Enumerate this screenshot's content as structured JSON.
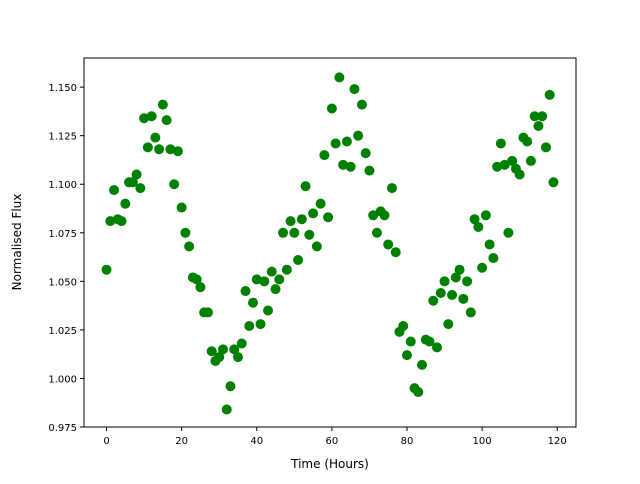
{
  "chart_data": {
    "type": "scatter",
    "title": "",
    "xlabel": "Time (Hours)",
    "ylabel": "Normalised Flux",
    "xlim": [
      -6,
      125
    ],
    "ylim": [
      0.975,
      1.165
    ],
    "xticks": [
      0,
      20,
      40,
      60,
      80,
      100,
      120
    ],
    "xtick_labels": [
      "0",
      "20",
      "40",
      "60",
      "80",
      "100",
      "120"
    ],
    "yticks": [
      0.975,
      1.0,
      1.025,
      1.05,
      1.075,
      1.1,
      1.125,
      1.15
    ],
    "ytick_labels": [
      "0.975",
      "1.000",
      "1.025",
      "1.050",
      "1.075",
      "1.100",
      "1.125",
      "1.150"
    ],
    "grid": false,
    "legend": "none",
    "marker_color": "#008000",
    "series": [
      {
        "x": [
          0,
          1,
          2,
          3,
          4,
          5,
          6,
          7,
          8,
          9,
          10,
          11,
          12,
          13,
          14,
          15,
          16,
          17,
          18,
          19,
          20,
          21,
          22,
          23,
          24,
          25,
          26,
          27,
          28,
          29,
          30,
          31,
          32,
          33,
          34,
          35,
          36,
          37,
          38,
          39,
          40,
          41,
          42,
          43,
          44,
          45,
          46,
          47,
          48,
          49,
          50,
          51,
          52,
          53,
          54,
          55,
          56,
          57,
          58,
          59,
          60,
          61,
          62,
          63,
          64,
          65,
          66,
          67,
          68,
          69,
          70,
          71,
          72,
          73,
          74,
          75,
          76,
          77,
          78,
          79,
          80,
          81,
          82,
          83,
          84,
          85,
          86,
          87,
          88,
          89,
          90,
          91,
          92,
          93,
          94,
          95,
          96,
          97,
          98,
          99,
          100,
          101,
          102,
          103,
          104,
          105,
          106,
          107,
          108,
          109,
          110,
          111,
          112,
          113,
          114,
          115,
          116,
          117,
          118,
          119
        ],
        "y": [
          1.056,
          1.081,
          1.097,
          1.082,
          1.081,
          1.09,
          1.101,
          1.101,
          1.105,
          1.098,
          1.134,
          1.119,
          1.135,
          1.124,
          1.118,
          1.141,
          1.133,
          1.118,
          1.1,
          1.117,
          1.088,
          1.075,
          1.068,
          1.052,
          1.051,
          1.047,
          1.034,
          1.034,
          1.014,
          1.009,
          1.011,
          1.015,
          0.984,
          0.996,
          1.015,
          1.011,
          1.018,
          1.045,
          1.027,
          1.039,
          1.051,
          1.028,
          1.05,
          1.035,
          1.055,
          1.046,
          1.051,
          1.075,
          1.056,
          1.081,
          1.075,
          1.061,
          1.082,
          1.099,
          1.074,
          1.085,
          1.068,
          1.09,
          1.115,
          1.083,
          1.139,
          1.121,
          1.155,
          1.11,
          1.122,
          1.109,
          1.149,
          1.125,
          1.141,
          1.116,
          1.107,
          1.084,
          1.075,
          1.086,
          1.084,
          1.069,
          1.098,
          1.065,
          1.024,
          1.027,
          1.012,
          1.019,
          0.995,
          0.993,
          1.007,
          1.02,
          1.019,
          1.04,
          1.016,
          1.044,
          1.05,
          1.028,
          1.043,
          1.052,
          1.056,
          1.041,
          1.05,
          1.034,
          1.082,
          1.078,
          1.057,
          1.084,
          1.069,
          1.062,
          1.109,
          1.121,
          1.11,
          1.075,
          1.112,
          1.108,
          1.105,
          1.124,
          1.122,
          1.112,
          1.135,
          1.13,
          1.135,
          1.119,
          1.146,
          1.101
        ]
      }
    ]
  }
}
